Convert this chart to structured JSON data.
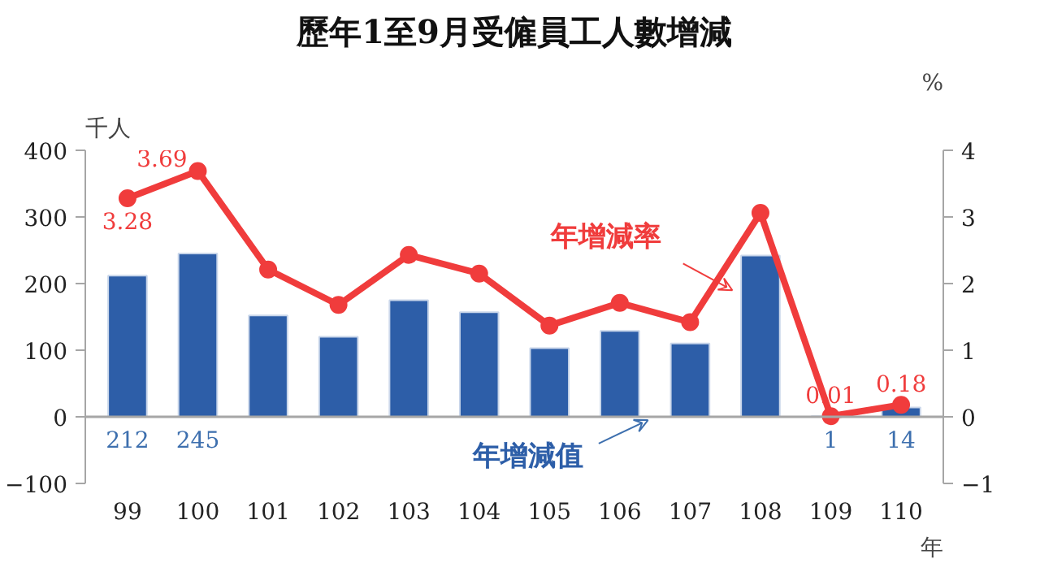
{
  "chart_data": {
    "type": "bar",
    "title": "歷年1至9月受僱員工人數增減",
    "ylabel": "千人",
    "y2label": "%",
    "xlabel": "年",
    "categories": [
      "99",
      "100",
      "101",
      "102",
      "103",
      "104",
      "105",
      "106",
      "107",
      "108",
      "109",
      "110"
    ],
    "series": [
      {
        "name": "年增減值",
        "color": "#2d5ea8",
        "values": [
          212,
          245,
          152,
          120,
          175,
          157,
          103,
          129,
          110,
          242,
          1,
          14
        ],
        "value_labels": [
          "212",
          "245",
          null,
          null,
          null,
          null,
          null,
          null,
          null,
          null,
          "1",
          "14"
        ]
      },
      {
        "name": "年增減率",
        "type": "line",
        "axis": "y2",
        "color": "#f03c3c",
        "values": [
          3.28,
          3.69,
          2.21,
          1.68,
          2.43,
          2.15,
          1.37,
          1.71,
          1.42,
          3.06,
          0.01,
          0.18
        ],
        "value_labels": [
          "3.28",
          "3.69",
          null,
          null,
          null,
          null,
          null,
          null,
          null,
          null,
          "0.01",
          "0.18"
        ]
      }
    ],
    "ylim": [
      -100,
      400
    ],
    "yticks": [
      -100,
      0,
      100,
      200,
      300,
      400
    ],
    "y2lim": [
      -1,
      4
    ],
    "y2ticks": [
      -1,
      0,
      1,
      2,
      3,
      4
    ],
    "ref_lines": [
      {
        "axis": "y",
        "value": 0,
        "color": "#a6a6a6"
      }
    ],
    "marker": "circle",
    "line_style": "solid",
    "grid": false
  }
}
